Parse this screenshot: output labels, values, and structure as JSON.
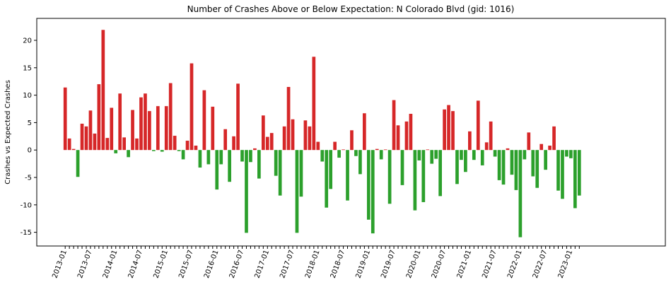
{
  "chart_data": {
    "type": "bar",
    "title": "Number of Crashes Above or Below Expectation: N Colorado Blvd (gid: 1016)",
    "xlabel": "",
    "ylabel": "Crashes vs Expected Crashes",
    "ylim": [
      -17.5,
      24
    ],
    "yticks": [
      -15,
      -10,
      -5,
      0,
      5,
      10,
      15,
      20
    ],
    "grid": false,
    "start_month": "2013-01",
    "xtick_labels": [
      "2013-01",
      "2013-07",
      "2014-01",
      "2014-07",
      "2015-01",
      "2015-07",
      "2016-01",
      "2016-07",
      "2017-01",
      "2017-07",
      "2018-01",
      "2018-07",
      "2019-01",
      "2019-07",
      "2020-01",
      "2020-07",
      "2021-01",
      "2021-07",
      "2022-01",
      "2022-07",
      "2023-01"
    ],
    "colors": {
      "above": "#d62728",
      "below": "#2ca02c"
    },
    "values": [
      11.4,
      2.1,
      0.2,
      -4.9,
      4.8,
      4.3,
      7.2,
      3.0,
      12.0,
      21.9,
      2.2,
      7.7,
      -0.6,
      10.3,
      2.3,
      -1.3,
      7.3,
      2.1,
      9.6,
      10.3,
      7.1,
      -0.2,
      8.0,
      -0.3,
      8.0,
      12.2,
      2.6,
      -0.2,
      -1.7,
      1.7,
      15.8,
      0.8,
      -3.2,
      10.9,
      -2.6,
      7.9,
      -7.2,
      -2.6,
      3.8,
      -5.8,
      2.5,
      12.1,
      -2.1,
      -15.1,
      -2.2,
      0.3,
      -5.2,
      6.3,
      2.4,
      3.1,
      -4.7,
      -8.3,
      4.3,
      11.5,
      5.6,
      -15.1,
      -8.5,
      5.4,
      4.3,
      17.0,
      1.5,
      -2.1,
      -10.5,
      -7.1,
      1.5,
      -1.4,
      0.1,
      -9.2,
      3.6,
      -1.1,
      -4.4,
      6.7,
      -12.7,
      -15.2,
      0.2,
      -1.7,
      0.1,
      -9.8,
      9.1,
      4.5,
      -6.4,
      5.2,
      6.6,
      -11.0,
      -1.9,
      -9.5,
      0.1,
      -2.5,
      -1.6,
      -8.4,
      7.4,
      8.2,
      7.1,
      -6.2,
      -1.8,
      -4.0,
      3.4,
      -1.8,
      9.0,
      -2.8,
      1.4,
      5.2,
      -1.2,
      -5.5,
      -6.3,
      0.3,
      -4.5,
      -7.3,
      -15.9,
      -1.7,
      3.2,
      -4.8,
      -6.9,
      1.1,
      -3.6,
      0.8,
      4.3,
      -7.4,
      -8.9,
      -1.2,
      -1.5,
      -10.6,
      -8.3
    ]
  }
}
